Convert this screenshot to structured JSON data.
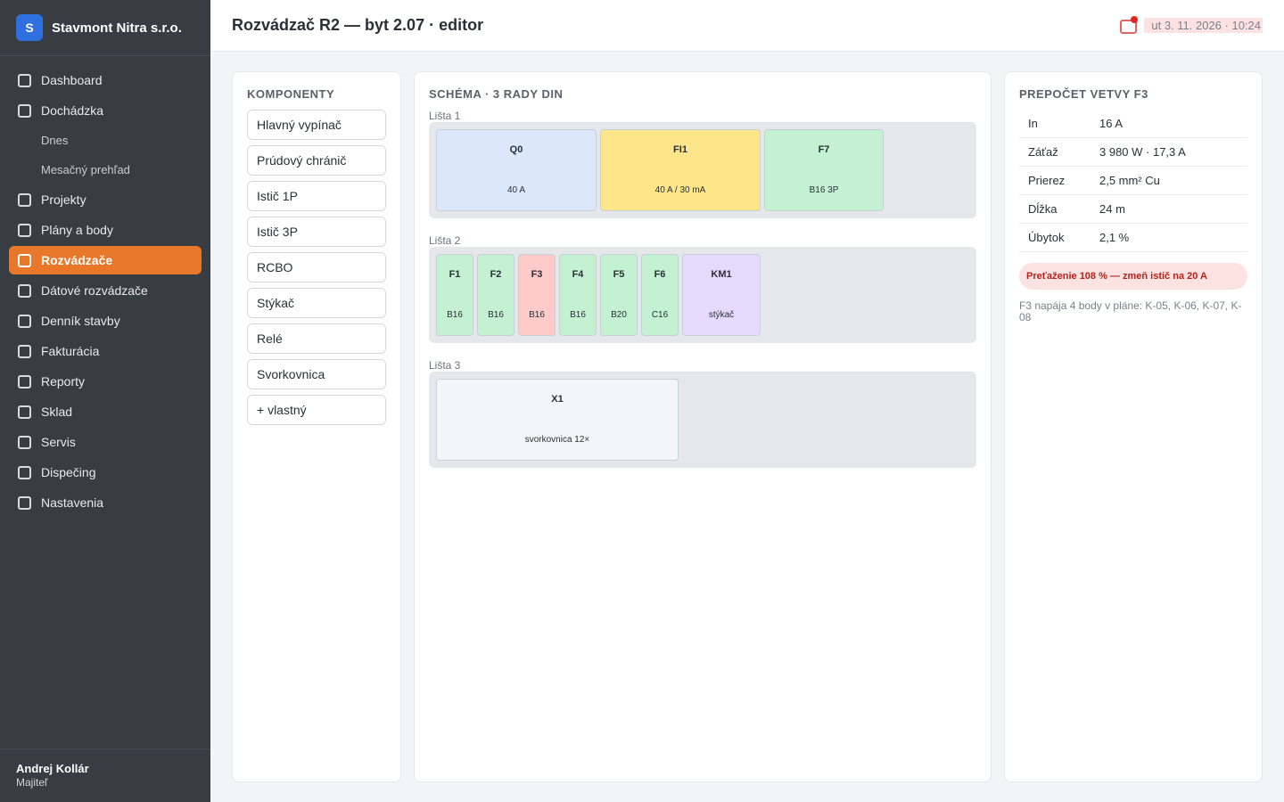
{
  "brand": {
    "logo_letter": "S",
    "name": "Stavmont Nitra s.r.o."
  },
  "sidebar": {
    "items": [
      {
        "label": "Dashboard"
      },
      {
        "label": "Dochádzka"
      },
      {
        "label": "Projekty"
      },
      {
        "label": "Plány a body"
      },
      {
        "label": "Rozvádzače"
      },
      {
        "label": "Dátové rozvádzače"
      },
      {
        "label": "Denník stavby"
      },
      {
        "label": "Fakturácia"
      },
      {
        "label": "Reporty"
      },
      {
        "label": "Sklad"
      },
      {
        "label": "Servis"
      },
      {
        "label": "Dispečing"
      },
      {
        "label": "Nastavenia"
      }
    ],
    "subitems": [
      {
        "label": "Dnes"
      },
      {
        "label": "Mesačný prehľad"
      }
    ],
    "active_item": "Rozvádzače",
    "active_color": "#e8772a"
  },
  "user": {
    "name": "Andrej Kollár",
    "role": "Majiteľ"
  },
  "header": {
    "title": "Rozvádzač R2 — byt 2.07 · editor",
    "datetime": "ut 3. 11. 2026 · 10:24",
    "notification_icon": "bell-icon"
  },
  "components": {
    "title": "KOMPONENTY",
    "items": [
      {
        "label": "Hlavný vypínač"
      },
      {
        "label": "Prúdový chránič"
      },
      {
        "label": "Istič 1P"
      },
      {
        "label": "Istič 3P"
      },
      {
        "label": "RCBO"
      },
      {
        "label": "Stýkač"
      },
      {
        "label": "Relé"
      },
      {
        "label": "Svorkovnica"
      },
      {
        "label": "+ vlastný"
      }
    ]
  },
  "schema": {
    "title": "SCHÉMA · 3 RADY DIN",
    "rails": [
      {
        "label": "Lišta 1",
        "modules": [
          {
            "name": "Q0",
            "value": "40 A",
            "color": "#dbe8fb"
          },
          {
            "name": "FI1",
            "value": "40 A / 30 mA",
            "color": "#fde68a"
          },
          {
            "name": "F7",
            "value": "B16 3P",
            "color": "#c4f1d2"
          }
        ]
      },
      {
        "label": "Lišta 2",
        "modules": [
          {
            "name": "F1",
            "value": "B16",
            "color": "#c4f1d2"
          },
          {
            "name": "F2",
            "value": "B16",
            "color": "#c4f1d2"
          },
          {
            "name": "F3",
            "value": "B16",
            "color": "#fecaca"
          },
          {
            "name": "F4",
            "value": "B16",
            "color": "#c4f1d2"
          },
          {
            "name": "F5",
            "value": "B20",
            "color": "#c4f1d2"
          },
          {
            "name": "F6",
            "value": "C16",
            "color": "#c4f1d2"
          },
          {
            "name": "KM1",
            "value": "stýkač",
            "color": "#e6dafc"
          }
        ]
      },
      {
        "label": "Lišta 3",
        "modules": [
          {
            "name": "X1",
            "value": "svorkovnica 12×",
            "color": "#f4f5f6"
          }
        ]
      }
    ]
  },
  "calc": {
    "title": "PREPOČET VETVY F3",
    "rows": [
      {
        "key": "In",
        "value": "16 A"
      },
      {
        "key": "Záťaž",
        "value": "3 980 W · 17,3 A"
      },
      {
        "key": "Prierez",
        "value": "2,5 mm² Cu"
      },
      {
        "key": "Dĺžka",
        "value": "24 m"
      },
      {
        "key": "Úbytok",
        "value": "2,1 %"
      }
    ],
    "warning": "Preťaženie 108 % — zmeň istič na 20 A",
    "note": "F3 napája 4 body v pláne: K-05, K-06, K-07, K-08"
  }
}
